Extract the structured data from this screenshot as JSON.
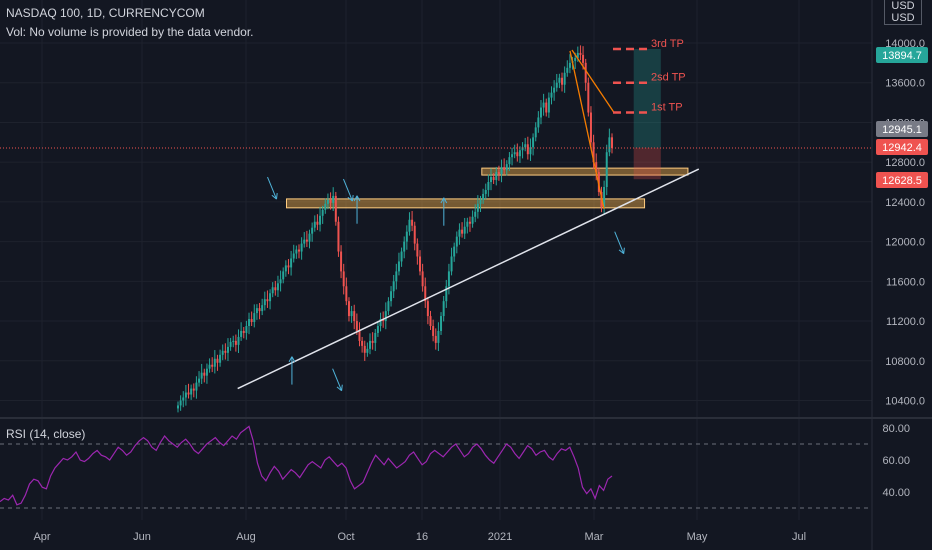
{
  "header": {
    "symbol_line": "NASDAQ 100, 1D, CURRENCYCOM",
    "volume_note": "Vol: No volume is provided by the data vendor."
  },
  "currency_badge": {
    "line1": "USD",
    "line2": "USD"
  },
  "rsi": {
    "title": "RSI (14, close)",
    "ticks": [
      "80.00",
      "60.00",
      "40.00"
    ],
    "upper_band": 70,
    "lower_band": 30,
    "color": "#9c27b0",
    "values": [
      34,
      36,
      35,
      38,
      32,
      33,
      38,
      45,
      48,
      47,
      43,
      42,
      50,
      55,
      58,
      61,
      60,
      62,
      65,
      60,
      59,
      61,
      64,
      66,
      63,
      62,
      60,
      64,
      68,
      66,
      63,
      65,
      69,
      72,
      74,
      72,
      68,
      66,
      71,
      75,
      72,
      70,
      68,
      71,
      73,
      70,
      66,
      64,
      67,
      70,
      72,
      74,
      71,
      69,
      72,
      75,
      73,
      77,
      79,
      81,
      72,
      58,
      50,
      47,
      52,
      56,
      53,
      48,
      51,
      54,
      52,
      49,
      53,
      57,
      59,
      57,
      55,
      60,
      62,
      59,
      56,
      58,
      55,
      47,
      42,
      44,
      46,
      52,
      58,
      63,
      60,
      57,
      61,
      58,
      55,
      57,
      59,
      63,
      65,
      61,
      57,
      59,
      64,
      66,
      64,
      62,
      65,
      68,
      70,
      66,
      62,
      64,
      68,
      70,
      67,
      63,
      60,
      58,
      62,
      66,
      70,
      68,
      64,
      61,
      65,
      69,
      67,
      63,
      65,
      66,
      62,
      60,
      64,
      67,
      66,
      68,
      62,
      55,
      43,
      39,
      42,
      36,
      44,
      41,
      48,
      50
    ]
  },
  "chart_data": {
    "type": "candlestick",
    "title": "NASDAQ 100, 1D, CURRENCYCOM",
    "y_ticks": [
      "14000.0",
      "13600.0",
      "13200.0",
      "12800.0",
      "12400.0",
      "12000.0",
      "11600.0",
      "11200.0",
      "10800.0",
      "10400.0"
    ],
    "x_ticks": [
      "Apr",
      "Jun",
      "Aug",
      "Oct",
      "16",
      "2021",
      "Mar",
      "May",
      "Jul"
    ],
    "ylim": [
      10300,
      14250
    ],
    "up_color": "#26a69a",
    "down_color": "#ef5350",
    "closes": [
      10350,
      10400,
      10430,
      10480,
      10460,
      10520,
      10500,
      10580,
      10620,
      10680,
      10650,
      10720,
      10760,
      10740,
      10820,
      10780,
      10860,
      10900,
      10880,
      10940,
      10990,
      11000,
      10960,
      11040,
      11100,
      11080,
      11150,
      11220,
      11190,
      11280,
      11330,
      11300,
      11360,
      11420,
      11400,
      11480,
      11540,
      11510,
      11580,
      11620,
      11700,
      11760,
      11740,
      11830,
      11880,
      11920,
      11900,
      11980,
      12020,
      12000,
      12080,
      12140,
      12200,
      12170,
      12260,
      12320,
      12380,
      12420,
      12390,
      12460,
      12200,
      11900,
      11700,
      11550,
      11400,
      11250,
      11300,
      11200,
      11100,
      11000,
      10950,
      10880,
      10920,
      11000,
      10980,
      11080,
      11150,
      11220,
      11200,
      11300,
      11400,
      11500,
      11600,
      11700,
      11800,
      11900,
      12000,
      12100,
      12220,
      12160,
      11980,
      11850,
      11700,
      11550,
      11400,
      11250,
      11150,
      11050,
      10980,
      11100,
      11250,
      11400,
      11550,
      11700,
      11850,
      11950,
      12050,
      12120,
      12080,
      12150,
      12200,
      12180,
      12250,
      12300,
      12380,
      12420,
      12480,
      12520,
      12600,
      12650,
      12620,
      12700,
      12680,
      12750,
      12720,
      12780,
      12850,
      12880,
      12900,
      12860,
      12920,
      12950,
      12980,
      12880,
      12950,
      13050,
      13150,
      13250,
      13350,
      13400,
      13300,
      13450,
      13500,
      13550,
      13600,
      13650,
      13580,
      13700,
      13750,
      13800,
      13820,
      13850,
      13900,
      13880,
      13800,
      13600,
      13300,
      13000,
      12800,
      12700,
      12500,
      12350,
      12550,
      12900,
      13050,
      12942
    ],
    "price_labels": [
      {
        "value": "13894.7",
        "color": "#26a69a"
      },
      {
        "value": "12945.1",
        "color": "#787b86"
      },
      {
        "value": "12942.4",
        "color": "#ef5350"
      },
      {
        "value": "12628.5",
        "color": "#ef5350"
      }
    ],
    "support_zones": [
      {
        "from": 12340,
        "to": 12430,
        "x_start": 40,
        "x_end": 172
      },
      {
        "from": 12670,
        "to": 12740,
        "x_start": 112,
        "x_end": 188
      }
    ],
    "trendline": {
      "x_start": 22,
      "value_start": 10520,
      "x_end": 192,
      "value_end": 12730
    },
    "take_profits": [
      {
        "label": "3rd TP",
        "value": 13940
      },
      {
        "label": "2sd TP",
        "value": 13600
      },
      {
        "label": "1st TP",
        "value": 13300
      }
    ],
    "position": {
      "entry": 12945,
      "target": 13940,
      "stop": 12628,
      "x_start": 168,
      "x_end": 178
    },
    "arrows": [
      {
        "x": 33,
        "value": 12650,
        "dir": "down-right"
      },
      {
        "x": 61,
        "value": 12630,
        "dir": "down-right"
      },
      {
        "x": 57,
        "value": 10720,
        "dir": "down-right"
      },
      {
        "x": 42,
        "value": 10560,
        "dir": "up"
      },
      {
        "x": 66,
        "value": 12180,
        "dir": "up"
      },
      {
        "x": 98,
        "value": 12160,
        "dir": "up"
      },
      {
        "x": 161,
        "value": 12100,
        "dir": "down-right"
      }
    ]
  }
}
